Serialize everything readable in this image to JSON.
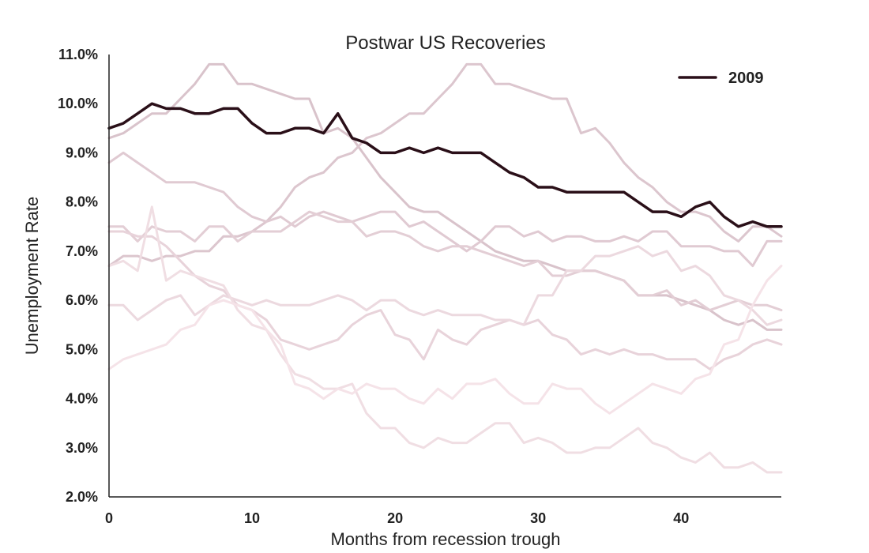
{
  "chart_data": {
    "type": "line",
    "title": "Postwar US Recoveries",
    "xlabel": "Months from recession trough",
    "ylabel": "Unemployment Rate",
    "xlim": [
      0,
      47
    ],
    "ylim": [
      2.0,
      11.0
    ],
    "x_ticks": [
      0,
      10,
      20,
      30,
      40
    ],
    "x_tick_labels": [
      "0",
      "10",
      "20",
      "30",
      "40"
    ],
    "y_ticks": [
      2,
      3,
      4,
      5,
      6,
      7,
      8,
      9,
      10,
      11
    ],
    "y_tick_labels": [
      "2.0%",
      "3.0%",
      "4.0%",
      "5.0%",
      "6.0%",
      "7.0%",
      "8.0%",
      "9.0%",
      "10.0%",
      "11.0%"
    ],
    "grid": false,
    "legend": {
      "position": "top-right",
      "entries": [
        "2009"
      ]
    },
    "highlight_color": "#2a0f18",
    "background_colors": [
      "#d9c3cb",
      "#dcc6ce",
      "#e0cad2",
      "#e3ced5",
      "#e8d3da",
      "#ecd9df",
      "#f0dee3",
      "#f5e3e8"
    ],
    "series": [
      {
        "name": "2009",
        "highlight": true,
        "x": [
          0,
          1,
          2,
          3,
          4,
          5,
          6,
          7,
          8,
          9,
          10,
          11,
          12,
          13,
          14,
          15,
          16,
          17,
          18,
          19,
          20,
          21,
          22,
          23,
          24,
          25,
          26,
          27,
          28,
          29,
          30,
          31,
          32,
          33,
          34,
          35,
          36,
          37,
          38,
          39,
          40,
          41,
          42,
          43,
          44,
          45,
          46,
          47
        ],
        "values": [
          9.5,
          9.6,
          9.8,
          10.0,
          9.9,
          9.9,
          9.8,
          9.8,
          9.9,
          9.9,
          9.6,
          9.4,
          9.4,
          9.5,
          9.5,
          9.4,
          9.8,
          9.3,
          9.2,
          9.0,
          9.0,
          9.1,
          9.0,
          9.1,
          9.0,
          9.0,
          9.0,
          8.8,
          8.6,
          8.5,
          8.3,
          8.3,
          8.2,
          8.2,
          8.2,
          8.2,
          8.2,
          8.0,
          7.8,
          7.8,
          7.7,
          7.9,
          8.0,
          7.7,
          7.5,
          7.6,
          7.5,
          7.5
        ]
      },
      {
        "highlight": false,
        "x": [
          0,
          1,
          2,
          3,
          4,
          5,
          6,
          7,
          8,
          9,
          10,
          11,
          12,
          13,
          14,
          15,
          16,
          17,
          18,
          19,
          20,
          21,
          22,
          23,
          24,
          25,
          26,
          27,
          28,
          29,
          30,
          31,
          32,
          33,
          34,
          35,
          36,
          37,
          38,
          39,
          40,
          41,
          42,
          43,
          44,
          45,
          46,
          47
        ],
        "values": [
          9.3,
          9.4,
          9.6,
          9.8,
          9.8,
          10.1,
          10.4,
          10.8,
          10.8,
          10.4,
          10.4,
          10.3,
          10.2,
          10.1,
          10.1,
          9.4,
          9.5,
          9.3,
          8.9,
          8.5,
          8.2,
          7.9,
          7.8,
          7.8,
          7.6,
          7.4,
          7.2,
          7.0,
          6.9,
          6.8,
          6.8,
          6.7,
          6.6,
          6.6,
          6.6,
          6.5,
          6.4,
          6.1,
          6.1,
          6.1,
          6.0,
          5.9,
          5.8,
          5.6,
          5.5,
          5.6,
          5.4,
          5.4
        ]
      },
      {
        "highlight": false,
        "x": [
          0,
          1,
          2,
          3,
          4,
          5,
          6,
          7,
          8,
          9,
          10,
          11,
          12,
          13,
          14,
          15,
          16,
          17,
          18,
          19,
          20,
          21,
          22,
          23,
          24,
          25,
          26,
          27,
          28,
          29,
          30,
          31,
          32,
          33,
          34,
          35,
          36,
          37,
          38,
          39,
          40,
          41,
          42,
          43,
          44,
          45,
          46,
          47
        ],
        "values": [
          6.7,
          6.9,
          6.9,
          6.8,
          6.9,
          6.9,
          7.0,
          7.0,
          7.3,
          7.3,
          7.4,
          7.6,
          7.9,
          8.3,
          8.5,
          8.6,
          8.9,
          9.0,
          9.3,
          9.4,
          9.6,
          9.8,
          9.8,
          10.1,
          10.4,
          10.8,
          10.8,
          10.4,
          10.4,
          10.3,
          10.2,
          10.1,
          10.1,
          9.4,
          9.5,
          9.2,
          8.8,
          8.5,
          8.3,
          8.0,
          7.8,
          7.8,
          7.7,
          7.4,
          7.2,
          7.5,
          7.5,
          7.3
        ]
      },
      {
        "highlight": false,
        "x": [
          0,
          1,
          2,
          3,
          4,
          5,
          6,
          7,
          8,
          9,
          10,
          11,
          12,
          13,
          14,
          15,
          16,
          17,
          18,
          19,
          20,
          21,
          22,
          23,
          24,
          25,
          26,
          27,
          28,
          29,
          30,
          31,
          32,
          33,
          34,
          35,
          36,
          37,
          38,
          39,
          40,
          41,
          42,
          43,
          44,
          45,
          46,
          47
        ],
        "values": [
          8.8,
          9.0,
          8.8,
          8.6,
          8.4,
          8.4,
          8.4,
          8.3,
          8.2,
          7.9,
          7.7,
          7.6,
          7.7,
          7.5,
          7.7,
          7.8,
          7.7,
          7.6,
          7.7,
          7.8,
          7.8,
          7.5,
          7.6,
          7.4,
          7.2,
          7.0,
          7.2,
          7.5,
          7.5,
          7.3,
          7.4,
          7.2,
          7.3,
          7.3,
          7.2,
          7.2,
          7.3,
          7.2,
          7.4,
          7.4,
          7.1,
          7.1,
          7.1,
          7.0,
          7.0,
          6.7,
          7.2,
          7.2
        ]
      },
      {
        "highlight": false,
        "x": [
          0,
          1,
          2,
          3,
          4,
          5,
          6,
          7,
          8,
          9,
          10,
          11,
          12,
          13,
          14,
          15,
          16,
          17,
          18,
          19,
          20,
          21,
          22,
          23,
          24,
          25,
          26,
          27,
          28,
          29,
          30,
          31,
          32,
          33,
          34,
          35,
          36,
          37,
          38,
          39,
          40,
          41,
          42,
          43,
          44,
          45,
          46,
          47
        ],
        "values": [
          7.5,
          7.5,
          7.2,
          7.5,
          7.4,
          7.4,
          7.2,
          7.5,
          7.5,
          7.2,
          7.4,
          7.4,
          7.4,
          7.6,
          7.8,
          7.7,
          7.6,
          7.6,
          7.3,
          7.4,
          7.4,
          7.3,
          7.1,
          7.0,
          7.1,
          7.1,
          7.0,
          6.9,
          6.8,
          6.7,
          6.8,
          6.5,
          6.5,
          6.6,
          6.6,
          6.5,
          6.4,
          6.1,
          6.1,
          6.2,
          5.9,
          6.0,
          5.8,
          5.9,
          6.0,
          5.9,
          5.9,
          5.8
        ]
      },
      {
        "highlight": false,
        "x": [
          0,
          1,
          2,
          3,
          4,
          5,
          6,
          7,
          8,
          9,
          10,
          11,
          12,
          13,
          14,
          15,
          16,
          17,
          18,
          19,
          20,
          21,
          22,
          23,
          24,
          25,
          26,
          27,
          28,
          29,
          30,
          31,
          32,
          33,
          34,
          35,
          36,
          37,
          38,
          39,
          40,
          41,
          42,
          43,
          44,
          45,
          46,
          47
        ],
        "values": [
          7.4,
          7.4,
          7.3,
          7.3,
          7.1,
          6.8,
          6.5,
          6.3,
          6.2,
          5.9,
          5.8,
          5.6,
          5.2,
          5.1,
          5.0,
          5.1,
          5.2,
          5.5,
          5.7,
          5.8,
          5.3,
          5.2,
          4.8,
          5.4,
          5.2,
          5.1,
          5.4,
          5.5,
          5.6,
          5.5,
          5.6,
          5.3,
          5.2,
          4.9,
          5.0,
          4.9,
          5.0,
          4.9,
          4.9,
          4.8,
          4.8,
          4.8,
          4.6,
          4.8,
          4.9,
          5.1,
          5.2,
          5.1
        ]
      },
      {
        "highlight": false,
        "x": [
          0,
          1,
          2,
          3,
          4,
          5,
          6,
          7,
          8,
          9,
          10,
          11,
          12,
          13,
          14,
          15,
          16,
          17,
          18,
          19,
          20,
          21,
          22,
          23,
          24,
          25,
          26,
          27,
          28,
          29,
          30,
          31,
          32,
          33,
          34,
          35,
          36,
          37,
          38,
          39,
          40,
          41,
          42,
          43,
          44,
          45,
          46,
          47
        ],
        "values": [
          5.9,
          5.9,
          5.6,
          5.8,
          6.0,
          6.1,
          5.7,
          5.9,
          6.1,
          6.0,
          5.9,
          6.0,
          5.9,
          5.9,
          5.9,
          6.0,
          6.1,
          6.0,
          5.8,
          6.0,
          6.0,
          5.8,
          5.7,
          5.8,
          5.7,
          5.7,
          5.7,
          5.6,
          5.6,
          5.5,
          6.1,
          6.1,
          6.6,
          6.6,
          6.9,
          6.9,
          7.0,
          7.1,
          6.9,
          7.0,
          6.6,
          6.7,
          6.5,
          6.1,
          6.0,
          5.8,
          5.5,
          5.6
        ]
      },
      {
        "highlight": false,
        "x": [
          0,
          1,
          2,
          3,
          4,
          5,
          6,
          7,
          8,
          9,
          10,
          11,
          12,
          13,
          14,
          15,
          16,
          17,
          18,
          19,
          20,
          21,
          22,
          23,
          24,
          25,
          26,
          27,
          28,
          29,
          30,
          31,
          32,
          33,
          34,
          35,
          36,
          37,
          38,
          39,
          40,
          41,
          42,
          43,
          44,
          45,
          46,
          47
        ],
        "values": [
          6.7,
          6.8,
          6.6,
          7.9,
          6.4,
          6.6,
          6.5,
          6.4,
          6.3,
          5.8,
          5.5,
          5.4,
          4.9,
          4.5,
          4.4,
          4.2,
          4.2,
          4.3,
          3.7,
          3.4,
          3.4,
          3.1,
          3.0,
          3.2,
          3.1,
          3.1,
          3.3,
          3.5,
          3.5,
          3.1,
          3.2,
          3.1,
          2.9,
          2.9,
          3.0,
          3.0,
          3.2,
          3.4,
          3.1,
          3.0,
          2.8,
          2.7,
          2.9,
          2.6,
          2.6,
          2.7,
          2.5,
          2.5
        ]
      },
      {
        "highlight": false,
        "x": [
          0,
          1,
          2,
          3,
          4,
          5,
          6,
          7,
          8,
          9,
          10,
          11,
          12,
          13,
          14,
          15,
          16,
          17,
          18,
          19,
          20,
          21,
          22,
          23,
          24,
          25,
          26,
          27,
          28,
          29,
          30,
          31,
          32,
          33,
          34,
          35,
          36,
          37,
          38,
          39,
          40,
          41,
          42,
          43,
          44,
          45,
          46,
          47
        ],
        "values": [
          4.6,
          4.8,
          4.9,
          5.0,
          5.1,
          5.4,
          5.5,
          5.9,
          6.0,
          5.9,
          5.8,
          5.4,
          5.1,
          4.3,
          4.2,
          4.0,
          4.2,
          4.1,
          4.3,
          4.2,
          4.2,
          4.0,
          3.9,
          4.2,
          4.0,
          4.3,
          4.3,
          4.4,
          4.1,
          3.9,
          3.9,
          4.3,
          4.2,
          4.2,
          3.9,
          3.7,
          3.9,
          4.1,
          4.3,
          4.2,
          4.1,
          4.4,
          4.5,
          5.1,
          5.2,
          5.9,
          6.4,
          6.7
        ]
      }
    ]
  }
}
